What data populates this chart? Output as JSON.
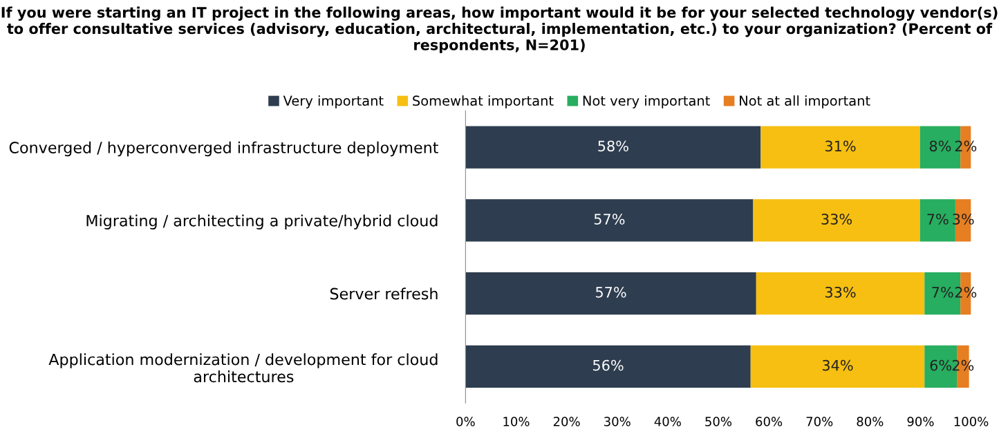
{
  "chart_data": {
    "type": "bar",
    "orientation": "horizontal",
    "stacked": true,
    "title": "If you were starting an IT project in the following areas, how important would it be for your selected technology vendor(s) to offer consultative services (advisory, education, architectural, implementation, etc.) to your organization? (Percent of respondents, N=201)",
    "categories": [
      "Converged / hyperconverged infrastructure deployment",
      "Migrating / architecting a private/hybrid cloud",
      "Server refresh",
      "Application modernization / development for cloud\narchitectures"
    ],
    "series": [
      {
        "name": "Very important",
        "color": "#2e3d4f",
        "values": [
          58.4,
          56.9,
          57.5,
          56.4
        ],
        "value_labels": [
          "58%",
          "57%",
          "57%",
          "56%"
        ]
      },
      {
        "name": "Somewhat important",
        "color": "#f6bf12",
        "values": [
          31.5,
          33.0,
          33.3,
          34.4
        ],
        "value_labels": [
          "31%",
          "33%",
          "33%",
          "34%"
        ]
      },
      {
        "name": "Not very important",
        "color": "#27ae60",
        "values": [
          8.0,
          7.0,
          7.1,
          6.4
        ],
        "value_labels": [
          "8%",
          "7%",
          "7%",
          "6%"
        ]
      },
      {
        "name": "Not at all important",
        "color": "#e67e22",
        "values": [
          2.1,
          3.1,
          2.1,
          2.4
        ],
        "value_labels": [
          "2%",
          "3%",
          "2%",
          "2%"
        ]
      }
    ],
    "xlim": [
      0,
      100
    ],
    "xticks": [
      {
        "value": 0,
        "label": "0%"
      },
      {
        "value": 10,
        "label": "10%"
      },
      {
        "value": 20,
        "label": "20%"
      },
      {
        "value": 30,
        "label": "30%"
      },
      {
        "value": 40,
        "label": "40%"
      },
      {
        "value": 50,
        "label": "50%"
      },
      {
        "value": 60,
        "label": "60%"
      },
      {
        "value": 70,
        "label": "70%"
      },
      {
        "value": 80,
        "label": "80%"
      },
      {
        "value": 90,
        "label": "90%"
      },
      {
        "value": 100,
        "label": "100%"
      }
    ],
    "grid": false,
    "legend": "top"
  }
}
